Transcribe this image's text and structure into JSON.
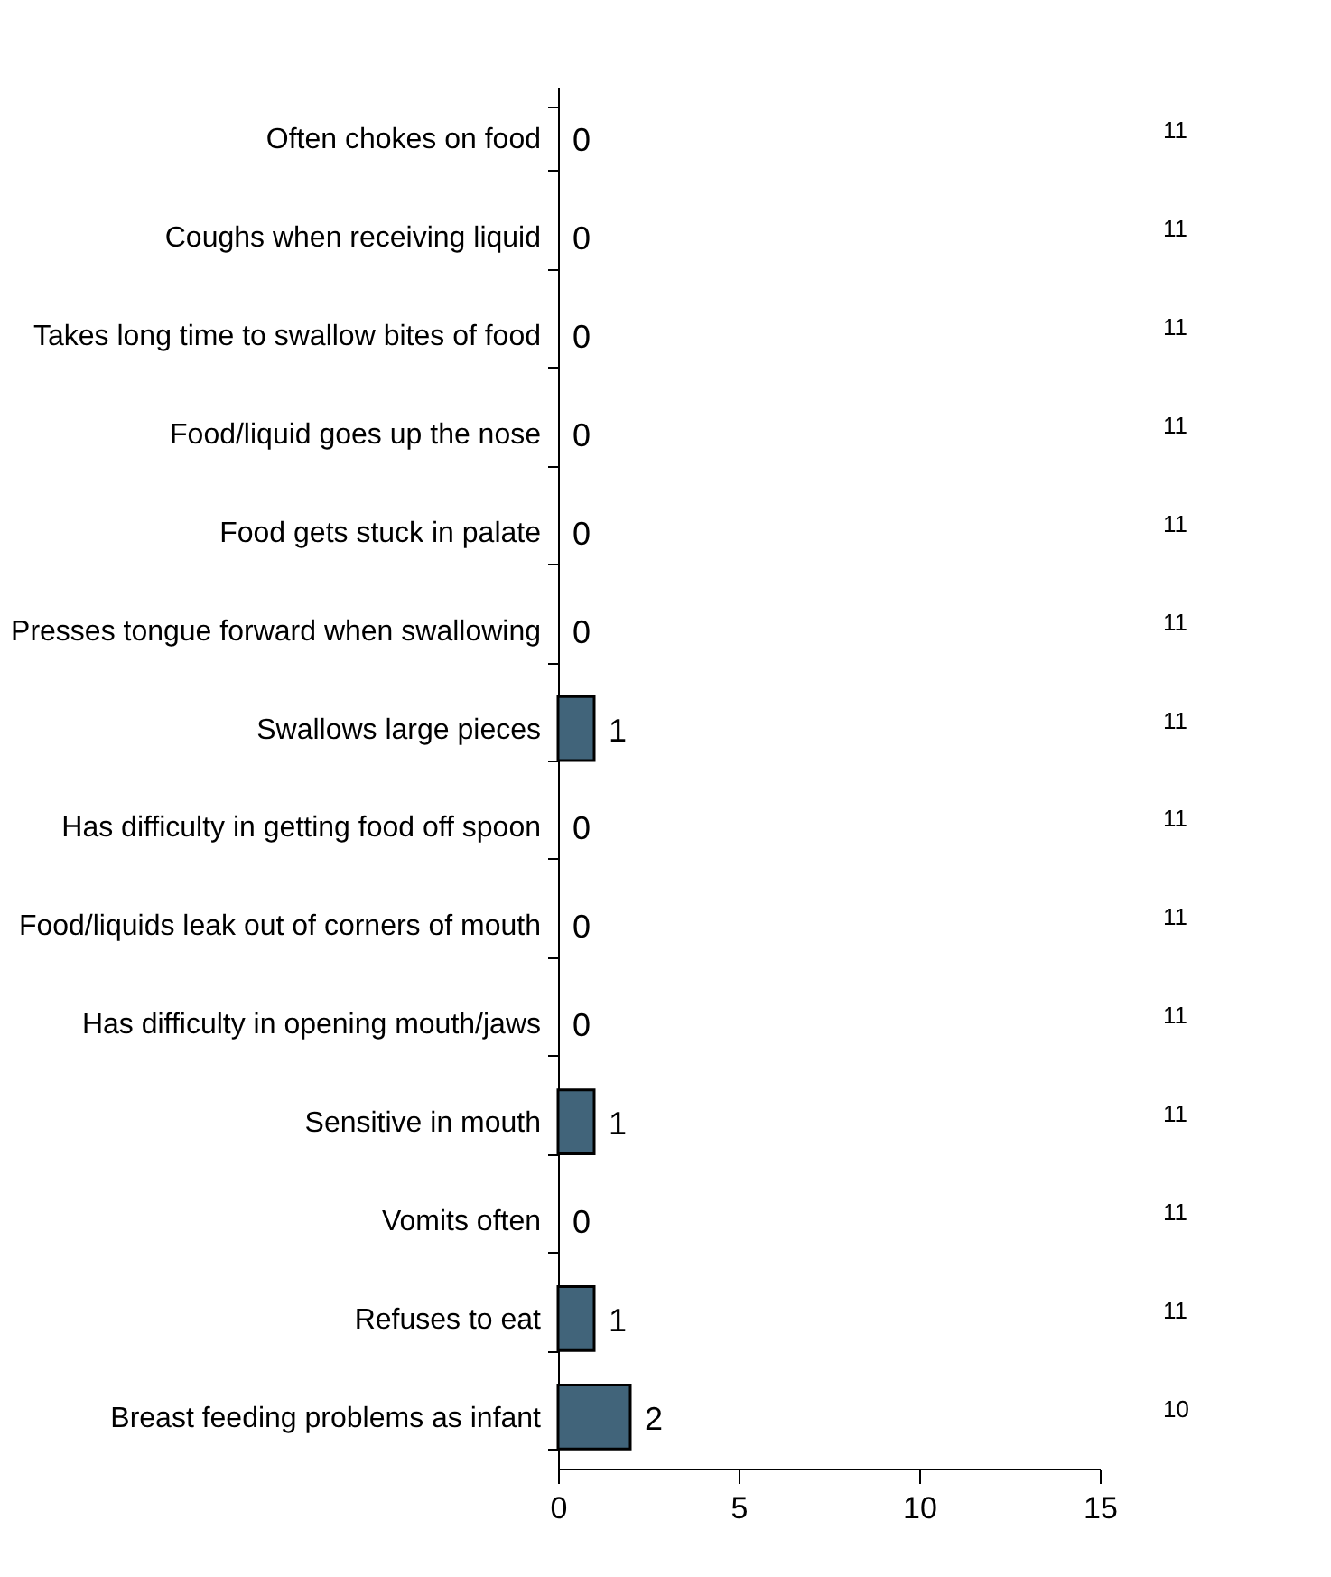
{
  "chart_data": {
    "type": "bar",
    "orientation": "horizontal",
    "categories": [
      "Often chokes on food",
      "Coughs when receiving liquid",
      "Takes long time to swallow bites of food",
      "Food/liquid goes up the nose",
      "Food gets stuck in palate",
      "Presses tongue forward when swallowing",
      "Swallows large pieces",
      "Has difficulty in getting food off spoon",
      "Food/liquids leak out of corners of mouth",
      "Has difficulty in opening mouth/jaws",
      "Sensitive in mouth",
      "Vomits often",
      "Refuses to eat",
      "Breast feeding problems as infant"
    ],
    "values": [
      0,
      0,
      0,
      0,
      0,
      0,
      1,
      0,
      0,
      0,
      1,
      0,
      1,
      2
    ],
    "color": "#41647a",
    "data_labels": true,
    "xlim": [
      0,
      15
    ],
    "xticks": [
      0,
      5,
      10,
      15
    ],
    "grid": false,
    "annotations": [
      "11",
      "11",
      "11",
      "11",
      "11",
      "11",
      "11",
      "11",
      "11",
      "11",
      "11",
      "11",
      "11",
      "10"
    ]
  }
}
